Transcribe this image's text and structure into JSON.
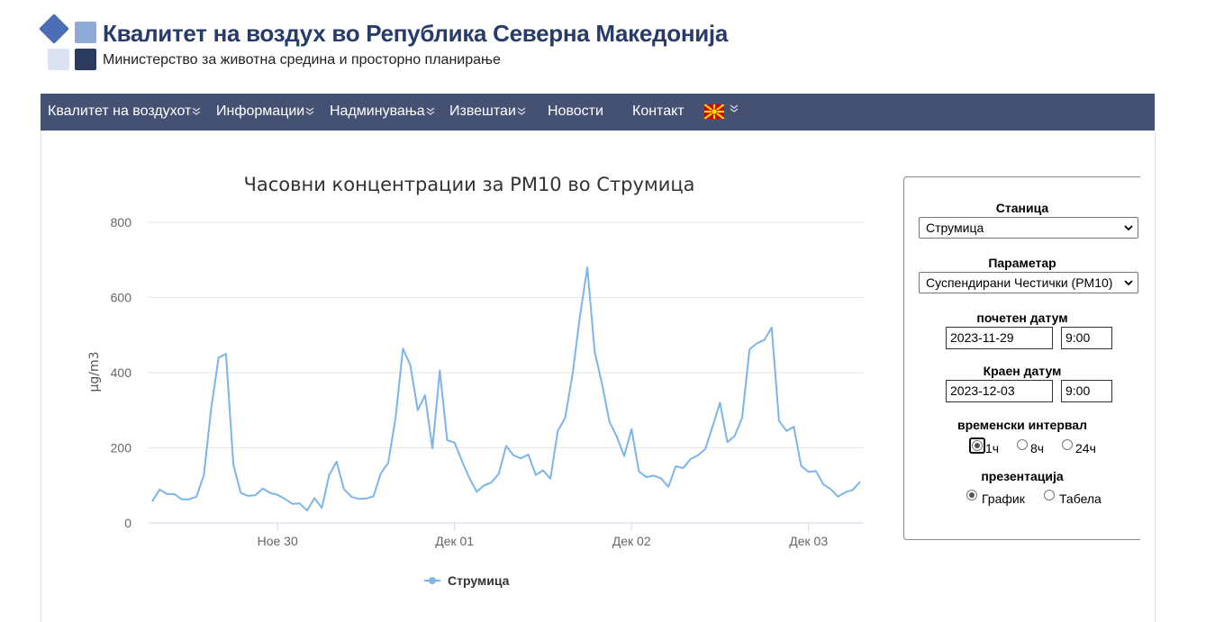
{
  "header": {
    "title": "Квалитет на воздух во Република Северна Македонија",
    "subtitle": "Министерство за животна средина и просторно планирање",
    "logo_colors": [
      "#4a6fb5",
      "#8fa9d8",
      "#dbe3f3",
      "#2c3a5e"
    ]
  },
  "nav": {
    "items": [
      {
        "label": "Квалитет на воздухот",
        "dropdown": true
      },
      {
        "label": "Информации",
        "dropdown": true
      },
      {
        "label": "Надминувања",
        "dropdown": true
      },
      {
        "label": "Извештаи",
        "dropdown": true
      },
      {
        "label": "Новости",
        "dropdown": false
      },
      {
        "label": "Контакт",
        "dropdown": false
      }
    ],
    "language_flag": "north-macedonia-flag",
    "bar_color": "#445172"
  },
  "chart_data": {
    "type": "line",
    "title": "Часовни концентрации за PM10 во Струмица",
    "ylabel": "µg/m3",
    "xlabel": "",
    "ylim": [
      0,
      800
    ],
    "yticks": [
      "0",
      "200",
      "400",
      "600",
      "800"
    ],
    "xtick_labels": [
      "Ное 30",
      "Дек 01",
      "Дек 02",
      "Дек 03"
    ],
    "grid": true,
    "legend": "bottom-center",
    "series": [
      {
        "name": "Струмица",
        "color": "#7cb5ec",
        "values": [
          57,
          89,
          77,
          77,
          63,
          63,
          70,
          127,
          305,
          440,
          450,
          155,
          80,
          72,
          74,
          92,
          80,
          75,
          64,
          51,
          52,
          33,
          66,
          40,
          128,
          163,
          90,
          70,
          64,
          65,
          71,
          132,
          160,
          280,
          464,
          420,
          300,
          340,
          198,
          406,
          220,
          214,
          165,
          120,
          83,
          100,
          108,
          131,
          205,
          180,
          172,
          182,
          128,
          140,
          118,
          245,
          280,
          396,
          550,
          680,
          455,
          370,
          270,
          230,
          178,
          250,
          137,
          122,
          126,
          119,
          96,
          151,
          146,
          170,
          180,
          197,
          258,
          320,
          215,
          232,
          280,
          462,
          478,
          487,
          520,
          272,
          245,
          256,
          152,
          136,
          138,
          103,
          90,
          70,
          82,
          88,
          110
        ]
      }
    ]
  },
  "panel": {
    "station_label": "Станица",
    "station_value": "Струмица",
    "parameter_label": "Параметар",
    "parameter_value": "Суспендирани Честички (PM10)",
    "start_label": "почетен датум",
    "start_date": "2023-11-29",
    "start_time": "9:00",
    "end_label": "Краен датум",
    "end_date": "2023-12-03",
    "end_time": "9:00",
    "interval_label": "временски интервал",
    "interval_options": [
      "1ч",
      "8ч",
      "24ч"
    ],
    "interval_selected": "1ч",
    "presentation_label": "презентација",
    "presentation_options": [
      "График",
      "Табела"
    ],
    "presentation_selected": "График"
  }
}
